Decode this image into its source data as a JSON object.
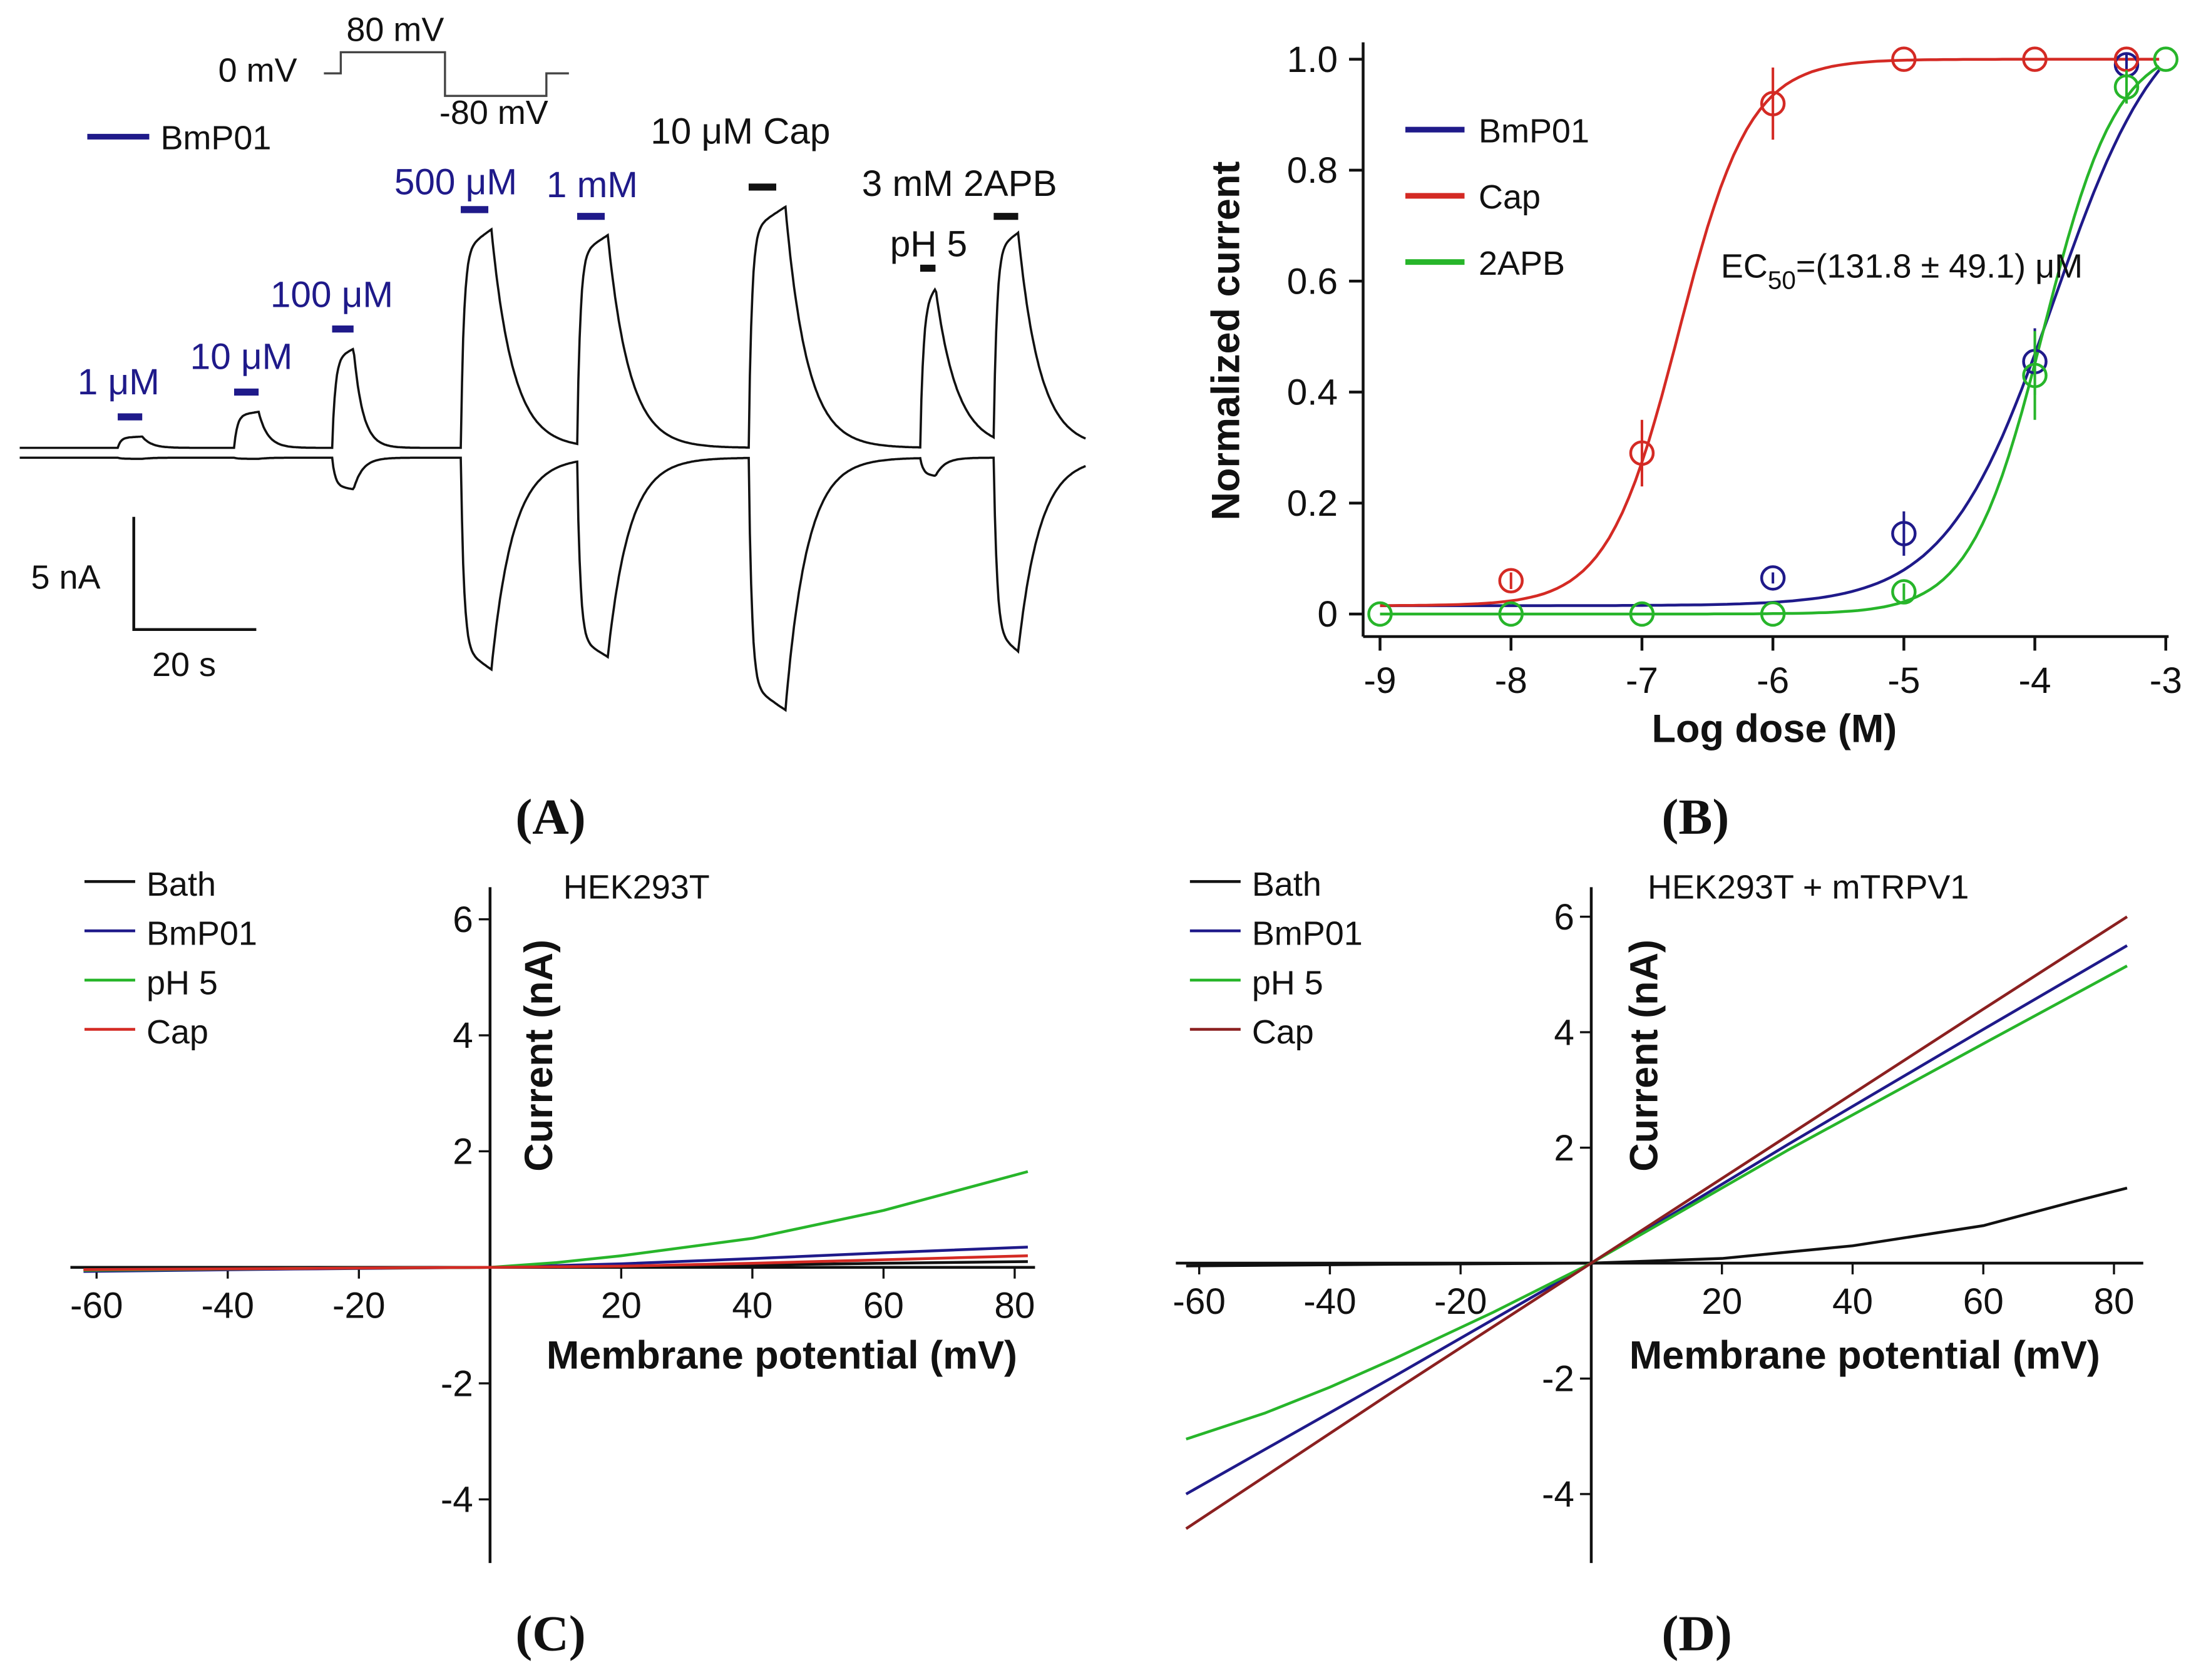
{
  "chart_data": [
    {
      "panel": "A",
      "type": "line",
      "title": "",
      "protocol": {
        "labels": [
          "0 mV",
          "80 mV",
          "-80 mV"
        ]
      },
      "legend": [
        {
          "name": "BmP01",
          "color": "#1f1a8a"
        }
      ],
      "scale_bar": {
        "y_label": "5 nA",
        "x_label": "20 s",
        "y_value_nA": 5,
        "x_value_s": 20
      },
      "duration_s": 174,
      "applications": [
        {
          "label": "1 μM",
          "color": "#1f1a8a",
          "start_s": 16,
          "dur_s": 4,
          "up_nA": 0.5,
          "down_nA": 0.05
        },
        {
          "label": "10 μM",
          "color": "#1f1a8a",
          "start_s": 35,
          "dur_s": 4,
          "up_nA": 1.6,
          "down_nA": 0.05
        },
        {
          "label": "100 μM",
          "color": "#1f1a8a",
          "start_s": 51,
          "dur_s": 3.5,
          "up_nA": 4.4,
          "down_nA": 1.4
        },
        {
          "label": "500 μM",
          "color": "#1f1a8a",
          "start_s": 72,
          "dur_s": 5,
          "up_nA": 9.7,
          "down_nA": 9.4
        },
        {
          "label": "1 mM",
          "color": "#1f1a8a",
          "start_s": 91,
          "dur_s": 5,
          "up_nA": 9.4,
          "down_nA": 8.8
        },
        {
          "label": "10 μM Cap",
          "color": "#111111",
          "start_s": 119,
          "dur_s": 6,
          "up_nA": 10.7,
          "down_nA": 11.2
        },
        {
          "label": "pH 5",
          "color": "#111111",
          "start_s": 147,
          "dur_s": 2.5,
          "up_nA": 7.1,
          "down_nA": 0.8
        },
        {
          "label": "3 mM 2APB",
          "color": "#111111",
          "start_s": 159,
          "dur_s": 4,
          "up_nA": 9.4,
          "down_nA": 8.6
        }
      ]
    },
    {
      "panel": "B",
      "type": "scatter",
      "xlabel": "Log dose (M)",
      "ylabel": "Normalized current",
      "xlim": [
        -9,
        -3
      ],
      "ylim": [
        0,
        1.0
      ],
      "xticks": [
        "-9",
        "-8",
        "-7",
        "-6",
        "-5",
        "-4",
        "-3"
      ],
      "yticks": [
        "0",
        "0.2",
        "0.4",
        "0.6",
        "0.8",
        "1.0"
      ],
      "annotation": {
        "main": "EC",
        "sub": "50",
        "rest": "=(131.8 ± 49.1) μM"
      },
      "legend_position": "top-left",
      "series": [
        {
          "name": "BmP01",
          "color": "#1f1a8a",
          "x": [
            -6,
            -5,
            -4,
            -3.3
          ],
          "y": [
            0.065,
            0.145,
            0.455,
            0.99
          ],
          "err": [
            0.01,
            0.04,
            0.06,
            0.02
          ],
          "fit": {
            "bottom": 0.015,
            "top": 1.12,
            "logEC50": -3.85,
            "hill": 1.05
          }
        },
        {
          "name": "Cap",
          "color": "#d42a24",
          "x": [
            -8,
            -7,
            -6,
            -5,
            -4,
            -3.3
          ],
          "y": [
            0.06,
            0.29,
            0.92,
            1.0,
            1.0,
            1.0
          ],
          "err": [
            0.015,
            0.06,
            0.065,
            0,
            0,
            0
          ],
          "fit": {
            "bottom": 0.015,
            "top": 1.0,
            "logEC50": -6.72,
            "hill": 1.6
          }
        },
        {
          "name": "2APB",
          "color": "#27b52a",
          "x": [
            -9,
            -8,
            -7,
            -6,
            -5,
            -4,
            -3.3,
            -3
          ],
          "y": [
            0,
            0,
            0,
            0,
            0.04,
            0.43,
            0.95,
            1.0
          ],
          "err": [
            0,
            0,
            0,
            0,
            0.015,
            0.08,
            0.03,
            0
          ],
          "fit": {
            "bottom": 0.0,
            "top": 1.03,
            "logEC50": -3.93,
            "hill": 1.55
          }
        }
      ]
    },
    {
      "panel": "C",
      "type": "line",
      "title": "HEK293T",
      "xlabel": "Membrane potential (mV)",
      "ylabel": "Current (nA)",
      "xlim": [
        -62,
        82
      ],
      "ylim": [
        -5,
        6.5
      ],
      "xticks": [
        "-60",
        "-40",
        "-20",
        "20",
        "40",
        "60",
        "80"
      ],
      "yticks": [
        "6",
        "4",
        "2",
        "-2",
        "-4"
      ],
      "legend_position": "top-left",
      "series": [
        {
          "name": "Bath",
          "color": "#111111",
          "x": [
            -62,
            0,
            20,
            40,
            60,
            82
          ],
          "y": [
            -0.03,
            0,
            0.01,
            0.04,
            0.07,
            0.1
          ]
        },
        {
          "name": "BmP01",
          "color": "#1f1a8a",
          "x": [
            -62,
            -30,
            0,
            20,
            40,
            60,
            82
          ],
          "y": [
            -0.07,
            -0.03,
            0,
            0.06,
            0.15,
            0.25,
            0.35
          ]
        },
        {
          "name": "pH 5",
          "color": "#27b52a",
          "x": [
            -62,
            -30,
            0,
            10,
            20,
            40,
            60,
            82
          ],
          "y": [
            -0.05,
            -0.02,
            0,
            0.08,
            0.2,
            0.5,
            0.98,
            1.65
          ]
        },
        {
          "name": "Cap",
          "color": "#d42a24",
          "x": [
            -62,
            0,
            20,
            40,
            60,
            82
          ],
          "y": [
            -0.04,
            0,
            0.02,
            0.07,
            0.13,
            0.2
          ]
        }
      ]
    },
    {
      "panel": "D",
      "type": "line",
      "title": "HEK293T + mTRPV1",
      "xlabel": "Membrane potential (mV)",
      "ylabel": "Current (nA)",
      "xlim": [
        -62,
        82
      ],
      "ylim": [
        -5,
        6.5
      ],
      "xticks": [
        "-60",
        "-40",
        "-20",
        "20",
        "40",
        "60",
        "80"
      ],
      "yticks": [
        "6",
        "4",
        "2",
        "-2",
        "-4"
      ],
      "legend_position": "top-left",
      "series": [
        {
          "name": "Bath",
          "color": "#111111",
          "x": [
            -62,
            -30,
            0,
            20,
            40,
            60,
            75,
            82
          ],
          "y": [
            -0.05,
            -0.02,
            0,
            0.08,
            0.3,
            0.65,
            1.1,
            1.3
          ]
        },
        {
          "name": "BmP01",
          "color": "#1f1a8a",
          "x": [
            -62,
            -30,
            0,
            30,
            60,
            82
          ],
          "y": [
            -4.0,
            -1.95,
            0,
            2.05,
            4.05,
            5.5
          ]
        },
        {
          "name": "pH 5",
          "color": "#27b52a",
          "x": [
            -62,
            -50,
            -40,
            -30,
            -15,
            0,
            30,
            60,
            82
          ],
          "y": [
            -3.05,
            -2.6,
            -2.15,
            -1.65,
            -0.85,
            0,
            1.95,
            3.8,
            5.15
          ]
        },
        {
          "name": "Cap",
          "color": "#8b2020",
          "x": [
            -62,
            -30,
            0,
            30,
            60,
            82
          ],
          "y": [
            -4.6,
            -2.2,
            0,
            2.2,
            4.4,
            6.0
          ]
        }
      ]
    }
  ],
  "panel_labels": [
    "(A)",
    "(B)",
    "(C)",
    "(D)"
  ]
}
